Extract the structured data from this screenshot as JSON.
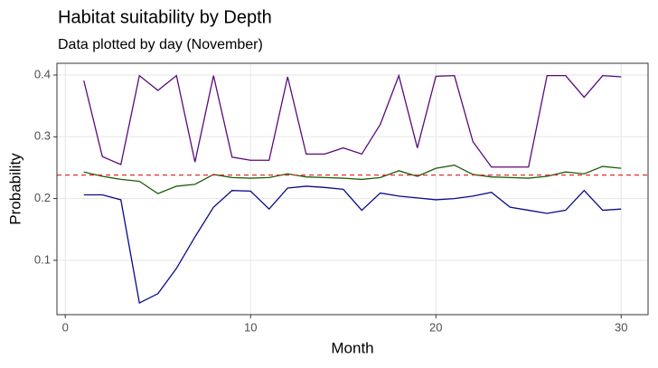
{
  "chart_data": {
    "type": "line",
    "title": "Habitat suitability by Depth",
    "subtitle": "Data plotted by day (November)",
    "xlabel": "Month",
    "ylabel": "Probability",
    "x": [
      1,
      2,
      3,
      4,
      5,
      6,
      7,
      8,
      9,
      10,
      11,
      12,
      13,
      14,
      15,
      16,
      17,
      18,
      19,
      20,
      21,
      22,
      23,
      24,
      25,
      26,
      27,
      28,
      29,
      30
    ],
    "series": [
      {
        "color": "#5a0a7a",
        "values": [
          0.391,
          0.268,
          0.255,
          0.399,
          0.375,
          0.399,
          0.259,
          0.399,
          0.267,
          0.262,
          0.262,
          0.397,
          0.272,
          0.272,
          0.282,
          0.272,
          0.32,
          0.399,
          0.282,
          0.398,
          0.399,
          0.292,
          0.251,
          0.251,
          0.251,
          0.399,
          0.399,
          0.364,
          0.399,
          0.397
        ]
      },
      {
        "color": "#1a5e0a",
        "values": [
          0.243,
          0.236,
          0.231,
          0.228,
          0.208,
          0.22,
          0.223,
          0.239,
          0.234,
          0.233,
          0.234,
          0.24,
          0.235,
          0.234,
          0.233,
          0.231,
          0.234,
          0.245,
          0.236,
          0.249,
          0.254,
          0.239,
          0.235,
          0.234,
          0.233,
          0.236,
          0.243,
          0.24,
          0.252,
          0.249
        ]
      },
      {
        "color": "#0a0a8a",
        "values": [
          0.206,
          0.206,
          0.198,
          0.031,
          0.046,
          0.087,
          0.138,
          0.186,
          0.213,
          0.212,
          0.183,
          0.217,
          0.22,
          0.218,
          0.215,
          0.181,
          0.209,
          0.204,
          0.201,
          0.198,
          0.2,
          0.204,
          0.21,
          0.186,
          0.181,
          0.176,
          0.181,
          0.213,
          0.181,
          0.183
        ]
      }
    ],
    "hline": {
      "value": 0.238,
      "color": "#e03030"
    },
    "xlim": [
      -0.45,
      31.45
    ],
    "ylim": [
      0.012,
      0.419
    ],
    "xticks": [
      0,
      10,
      20,
      30
    ],
    "yticks": [
      0.1,
      0.2,
      0.3,
      0.4
    ],
    "grid": true
  }
}
